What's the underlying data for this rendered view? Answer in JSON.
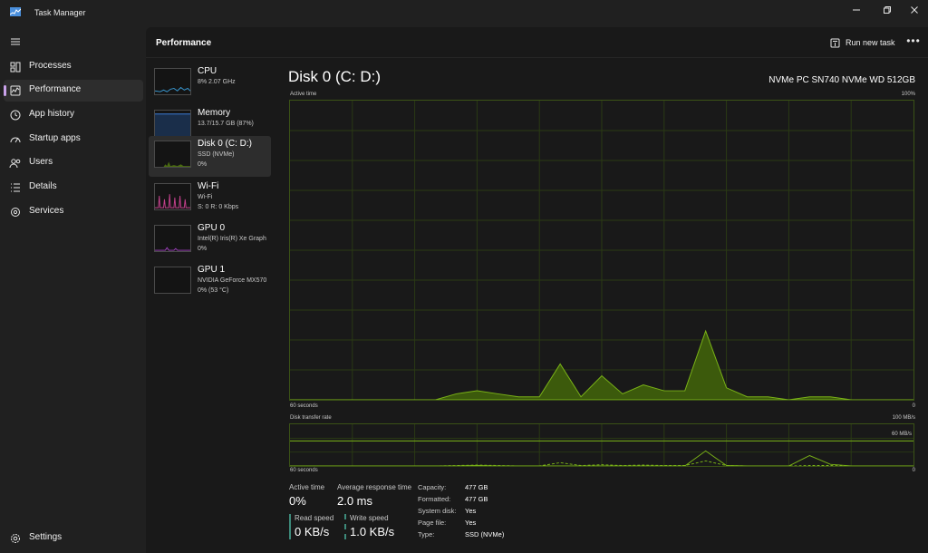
{
  "window": {
    "title": "Task Manager"
  },
  "sidebar": {
    "items": [
      {
        "label": "Processes",
        "icon": "processes-icon"
      },
      {
        "label": "Performance",
        "icon": "performance-icon",
        "active": true
      },
      {
        "label": "App history",
        "icon": "app-history-icon"
      },
      {
        "label": "Startup apps",
        "icon": "startup-apps-icon"
      },
      {
        "label": "Users",
        "icon": "users-icon"
      },
      {
        "label": "Details",
        "icon": "details-icon"
      },
      {
        "label": "Services",
        "icon": "services-icon"
      }
    ],
    "settings_label": "Settings"
  },
  "header": {
    "title": "Performance",
    "run_new_task": "Run new task",
    "more": "•••"
  },
  "devices": [
    {
      "name": "CPU",
      "line1": "8% 2.07 GHz",
      "line2": "",
      "color": "#3a9bd5"
    },
    {
      "name": "Memory",
      "line1": "13.7/15.7 GB (87%)",
      "line2": "",
      "color": "#3a7bd5"
    },
    {
      "name": "Disk 0 (C: D:)",
      "line1": "SSD (NVMe)",
      "line2": "0%",
      "color": "#7ab317",
      "selected": true
    },
    {
      "name": "Wi-Fi",
      "line1": "Wi-Fi",
      "line2": "S: 0 R: 0 Kbps",
      "color": "#c2408b"
    },
    {
      "name": "GPU 0",
      "line1": "Intel(R) Iris(R) Xe Graph",
      "line2": "0%",
      "color": "#a040c0"
    },
    {
      "name": "GPU 1",
      "line1": "NVIDIA GeForce MX570",
      "line2": "0% (53 °C)",
      "color": "#a040c0"
    }
  ],
  "detail": {
    "title": "Disk 0 (C: D:)",
    "model": "NVMe PC SN740 NVMe WD 512GB",
    "active_time_label": "Active time",
    "active_time_max": "100%",
    "axis_left": "60 seconds",
    "axis_right": "0",
    "transfer_label": "Disk transfer rate",
    "transfer_max": "100 MB/s",
    "transfer_mark": "60 MB/s",
    "stats": {
      "active_time_label": "Active time",
      "active_time_value": "0%",
      "avg_response_label": "Average response time",
      "avg_response_value": "2.0 ms",
      "read_speed_label": "Read speed",
      "read_speed_value": "0 KB/s",
      "write_speed_label": "Write speed",
      "write_speed_value": "1.0 KB/s"
    },
    "properties": [
      {
        "key": "Capacity:",
        "value": "477 GB"
      },
      {
        "key": "Formatted:",
        "value": "477 GB"
      },
      {
        "key": "System disk:",
        "value": "Yes"
      },
      {
        "key": "Page file:",
        "value": "Yes"
      },
      {
        "key": "Type:",
        "value": "SSD (NVMe)"
      }
    ]
  },
  "chart_data": [
    {
      "type": "area",
      "title": "Active time",
      "x": [
        60,
        58,
        56,
        54,
        52,
        50,
        48,
        46,
        44,
        42,
        40,
        38,
        36,
        34,
        32,
        30,
        28,
        26,
        24,
        22,
        20,
        18,
        16,
        14,
        12,
        10,
        8,
        6,
        4,
        2,
        0
      ],
      "y": [
        0,
        0,
        0,
        0,
        0,
        0,
        0,
        0,
        2,
        3,
        2,
        1,
        1,
        12,
        1,
        8,
        2,
        5,
        3,
        3,
        23,
        4,
        1,
        1,
        0,
        1,
        1,
        0,
        0,
        0,
        0
      ],
      "ylim": [
        0,
        100
      ],
      "color": "#7ab317"
    },
    {
      "type": "line",
      "title": "Disk transfer rate",
      "series": [
        {
          "name": "Read",
          "values": [
            0,
            0,
            0,
            0,
            0,
            0,
            0,
            0,
            0,
            1,
            0,
            0,
            0,
            0,
            0,
            0,
            0,
            0,
            0,
            0,
            36,
            1,
            0,
            0,
            0,
            25,
            4,
            0,
            0,
            0,
            0
          ]
        },
        {
          "name": "Write",
          "values": [
            0,
            0,
            0,
            0,
            0,
            0,
            0,
            0,
            1,
            2,
            1,
            0,
            0,
            8,
            1,
            3,
            1,
            2,
            1,
            1,
            12,
            1,
            0,
            0,
            0,
            1,
            1,
            0,
            0,
            0,
            0
          ]
        }
      ],
      "ylim": [
        0,
        100
      ],
      "color": "#7ab317"
    }
  ]
}
